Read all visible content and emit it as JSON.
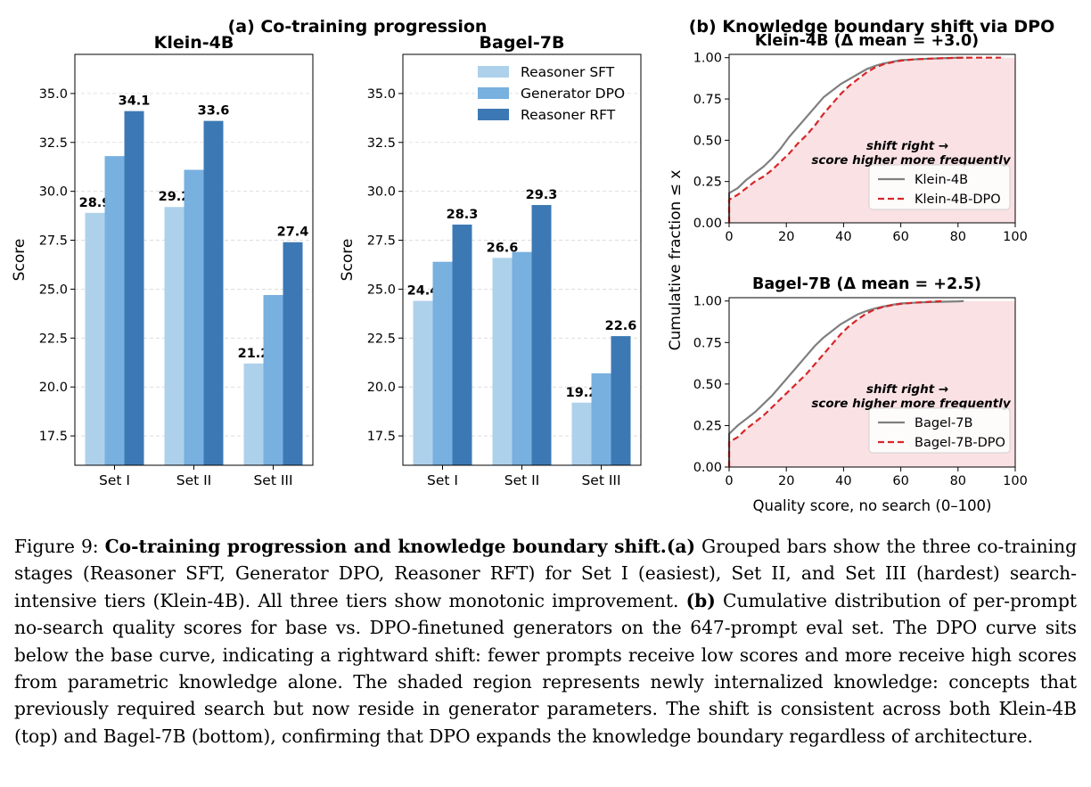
{
  "panel_a_title": "(a) Co-training progression",
  "panel_b_title": "(b) Knowledge boundary shift via DPO",
  "colors": {
    "reasoner_sft": "#aed1eb",
    "generator_dpo": "#78b0df",
    "reasoner_rft": "#3c79b4",
    "base_line": "#7f7f7f",
    "dpo_line": "#d62728",
    "shade": "#f9e1e4",
    "annotation": "#d62728"
  },
  "chart_data": [
    {
      "type": "bar",
      "title": "Klein-4B",
      "categories": [
        "Set I",
        "Set II",
        "Set III"
      ],
      "ylabel": "Score",
      "ylim": [
        16,
        37
      ],
      "yticks": [
        "17.5",
        "20.0",
        "22.5",
        "25.0",
        "27.5",
        "30.0",
        "32.5",
        "35.0"
      ],
      "grid": "horizontal dashed",
      "series": [
        {
          "name": "Reasoner SFT",
          "values": [
            28.9,
            29.2,
            21.2
          ],
          "labels": [
            "28.9",
            "29.2",
            "21.2"
          ]
        },
        {
          "name": "Generator DPO",
          "values": [
            31.8,
            31.1,
            24.7
          ],
          "labels": [
            "",
            "",
            ""
          ]
        },
        {
          "name": "Reasoner RFT",
          "values": [
            34.1,
            33.6,
            27.4
          ],
          "labels": [
            "34.1",
            "33.6",
            "27.4"
          ]
        }
      ]
    },
    {
      "type": "bar",
      "title": "Bagel-7B",
      "categories": [
        "Set I",
        "Set II",
        "Set III"
      ],
      "ylabel": "Score",
      "ylim": [
        16,
        37
      ],
      "yticks": [
        "17.5",
        "20.0",
        "22.5",
        "25.0",
        "27.5",
        "30.0",
        "32.5",
        "35.0"
      ],
      "grid": "horizontal dashed",
      "legend": "top-right",
      "series": [
        {
          "name": "Reasoner SFT",
          "values": [
            24.4,
            26.6,
            19.2
          ],
          "labels": [
            "24.4",
            "26.6",
            "19.2"
          ]
        },
        {
          "name": "Generator DPO",
          "values": [
            26.4,
            26.9,
            20.7
          ],
          "labels": [
            "",
            "",
            ""
          ]
        },
        {
          "name": "Reasoner RFT",
          "values": [
            28.3,
            29.3,
            22.6
          ],
          "labels": [
            "28.3",
            "29.3",
            "22.6"
          ]
        }
      ]
    },
    {
      "type": "line",
      "title": "Klein-4B  (Δ mean = +3.0)",
      "xlim": [
        0,
        100
      ],
      "ylim": [
        0,
        1.02
      ],
      "xticks": [
        "0",
        "20",
        "40",
        "60",
        "80",
        "100"
      ],
      "yticks": [
        "0.00",
        "0.25",
        "0.50",
        "0.75",
        "1.00"
      ],
      "legend": "lower-right",
      "annotation": [
        "shift right →",
        "score higher more frequently"
      ],
      "series": [
        {
          "name": "Klein-4B",
          "style": "solid",
          "x": [
            0,
            0,
            3,
            6,
            9,
            12,
            15,
            18,
            21,
            24,
            27,
            30,
            33,
            36,
            39,
            42,
            45,
            48,
            51,
            54,
            57,
            60,
            65,
            70,
            75,
            80,
            82
          ],
          "y": [
            0,
            0.18,
            0.21,
            0.26,
            0.3,
            0.34,
            0.39,
            0.45,
            0.52,
            0.58,
            0.64,
            0.7,
            0.76,
            0.8,
            0.84,
            0.87,
            0.9,
            0.93,
            0.95,
            0.965,
            0.975,
            0.985,
            0.99,
            0.994,
            0.997,
            1.0,
            1.0
          ]
        },
        {
          "name": "Klein-4B-DPO",
          "style": "dashed",
          "x": [
            0,
            0,
            3,
            6,
            9,
            12,
            15,
            18,
            21,
            24,
            27,
            30,
            33,
            36,
            39,
            42,
            45,
            48,
            51,
            54,
            57,
            60,
            65,
            70,
            75,
            80,
            85,
            90,
            95
          ],
          "y": [
            0,
            0.14,
            0.17,
            0.21,
            0.25,
            0.28,
            0.32,
            0.37,
            0.42,
            0.48,
            0.53,
            0.59,
            0.66,
            0.72,
            0.78,
            0.83,
            0.87,
            0.91,
            0.94,
            0.96,
            0.972,
            0.982,
            0.99,
            0.994,
            0.997,
            0.999,
            1.0,
            1.0,
            1.0
          ]
        }
      ]
    },
    {
      "type": "line",
      "title": "Bagel-7B  (Δ mean = +2.5)",
      "xlim": [
        0,
        100
      ],
      "ylim": [
        0,
        1.02
      ],
      "xticks": [
        "0",
        "20",
        "40",
        "60",
        "80",
        "100"
      ],
      "yticks": [
        "0.00",
        "0.25",
        "0.50",
        "0.75",
        "1.00"
      ],
      "xlabel": "Quality score, no search (0–100)",
      "legend": "lower-right",
      "annotation": [
        "shift right →",
        "score higher more frequently"
      ],
      "series": [
        {
          "name": "Bagel-7B",
          "style": "solid",
          "x": [
            0,
            0,
            3,
            6,
            9,
            12,
            15,
            18,
            21,
            24,
            27,
            30,
            33,
            36,
            39,
            42,
            45,
            48,
            51,
            54,
            57,
            60,
            65,
            70,
            75,
            80,
            82
          ],
          "y": [
            0,
            0.2,
            0.25,
            0.29,
            0.33,
            0.38,
            0.43,
            0.49,
            0.55,
            0.61,
            0.67,
            0.73,
            0.78,
            0.82,
            0.86,
            0.89,
            0.92,
            0.94,
            0.955,
            0.967,
            0.977,
            0.985,
            0.99,
            0.994,
            0.996,
            0.998,
            1.0
          ]
        },
        {
          "name": "Bagel-7B-DPO",
          "style": "dashed",
          "x": [
            0,
            0,
            3,
            6,
            9,
            12,
            15,
            18,
            21,
            24,
            27,
            30,
            33,
            36,
            39,
            42,
            45,
            48,
            51,
            54,
            57,
            60,
            65,
            70,
            75
          ],
          "y": [
            0,
            0.15,
            0.18,
            0.23,
            0.27,
            0.31,
            0.36,
            0.41,
            0.46,
            0.51,
            0.56,
            0.62,
            0.68,
            0.74,
            0.8,
            0.85,
            0.89,
            0.925,
            0.95,
            0.965,
            0.975,
            0.983,
            0.99,
            0.995,
            1.0
          ]
        }
      ]
    }
  ],
  "cdf_ylabel": "Cumulative fraction ≤ x",
  "caption": {
    "prefix": "Figure 9: ",
    "bold_title": "Co-training progression and knowledge boundary shift.",
    "a_marker": "(a)",
    "a_text": " Grouped bars show the three co-training stages (Reasoner SFT, Generator DPO, Reasoner RFT) for Set I (easiest), Set II, and Set III (hardest) search-intensive tiers (Klein-4B). All three tiers show monotonic improvement. ",
    "b_marker": "(b)",
    "b_text": " Cumulative distribution of per-prompt no-search quality scores for base vs. DPO-finetuned generators on the 647-prompt eval set. The DPO curve sits below the base curve, indicating a rightward shift: fewer prompts receive low scores and more receive high scores from parametric knowledge alone. The shaded region represents newly internalized knowledge: concepts that previously required search but now reside in generator parameters. The shift is consistent across both Klein-4B (top) and Bagel-7B (bottom), confirming that DPO expands the knowledge boundary regardless of architecture."
  }
}
